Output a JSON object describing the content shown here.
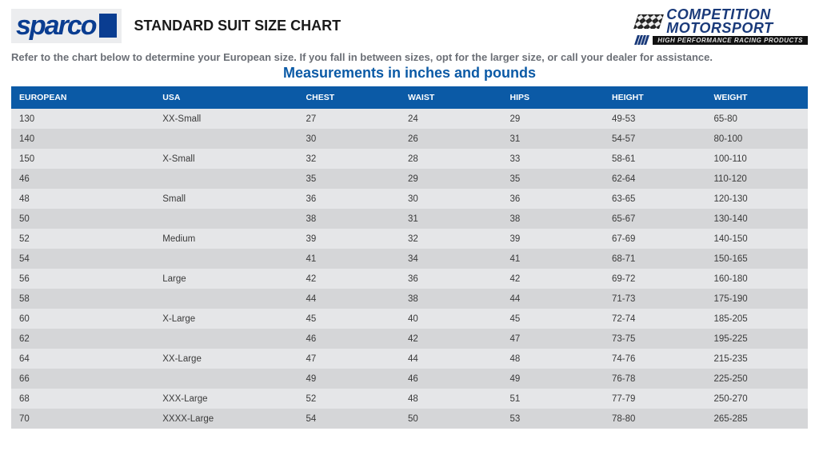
{
  "header": {
    "sparco_logo_text": "sparco",
    "title": "STANDARD SUIT SIZE CHART",
    "comp_line1": "COMPETITION",
    "comp_line2": "MOTORSPORT",
    "comp_tagline": "HIGH PERFORMANCE RACING PRODUCTS"
  },
  "instruction": "Refer to the chart below to determine your European size. If you fall in between sizes, opt for the larger size, or call your dealer for assistance.",
  "subhead": "Measurements in inches and pounds",
  "table": {
    "columns": [
      "EUROPEAN",
      "USA",
      "CHEST",
      "WAIST",
      "HIPS",
      "HEIGHT",
      "WEIGHT"
    ],
    "col_widths_pct": [
      18,
      18,
      12.8,
      12.8,
      12.8,
      12.8,
      12.8
    ],
    "header_bg": "#0b5aa6",
    "header_fg": "#ffffff",
    "row_bg_odd": "#e5e6e8",
    "row_bg_even": "#d5d6d8",
    "text_color": "#3a3a3a",
    "font_size_pt": 9,
    "rows": [
      [
        "130",
        "XX-Small",
        "27",
        "24",
        "29",
        "49-53",
        "65-80"
      ],
      [
        "140",
        "",
        "30",
        "26",
        "31",
        "54-57",
        "80-100"
      ],
      [
        "150",
        "X-Small",
        "32",
        "28",
        "33",
        "58-61",
        "100-110"
      ],
      [
        "46",
        "",
        "35",
        "29",
        "35",
        "62-64",
        "110-120"
      ],
      [
        "48",
        "Small",
        "36",
        "30",
        "36",
        "63-65",
        "120-130"
      ],
      [
        "50",
        "",
        "38",
        "31",
        "38",
        "65-67",
        "130-140"
      ],
      [
        "52",
        "Medium",
        "39",
        "32",
        "39",
        "67-69",
        "140-150"
      ],
      [
        "54",
        "",
        "41",
        "34",
        "41",
        "68-71",
        "150-165"
      ],
      [
        "56",
        "Large",
        "42",
        "36",
        "42",
        "69-72",
        "160-180"
      ],
      [
        "58",
        "",
        "44",
        "38",
        "44",
        "71-73",
        "175-190"
      ],
      [
        "60",
        "X-Large",
        "45",
        "40",
        "45",
        "72-74",
        "185-205"
      ],
      [
        "62",
        "",
        "46",
        "42",
        "47",
        "73-75",
        "195-225"
      ],
      [
        "64",
        "XX-Large",
        "47",
        "44",
        "48",
        "74-76",
        "215-235"
      ],
      [
        "66",
        "",
        "49",
        "46",
        "49",
        "76-78",
        "225-250"
      ],
      [
        "68",
        "XXX-Large",
        "52",
        "48",
        "51",
        "77-79",
        "250-270"
      ],
      [
        "70",
        "XXXX-Large",
        "54",
        "50",
        "53",
        "78-80",
        "265-285"
      ]
    ]
  },
  "colors": {
    "brand_blue": "#0a3d91",
    "header_blue": "#0b5aa6",
    "gray_text": "#6b6f76",
    "page_bg": "#ffffff"
  }
}
